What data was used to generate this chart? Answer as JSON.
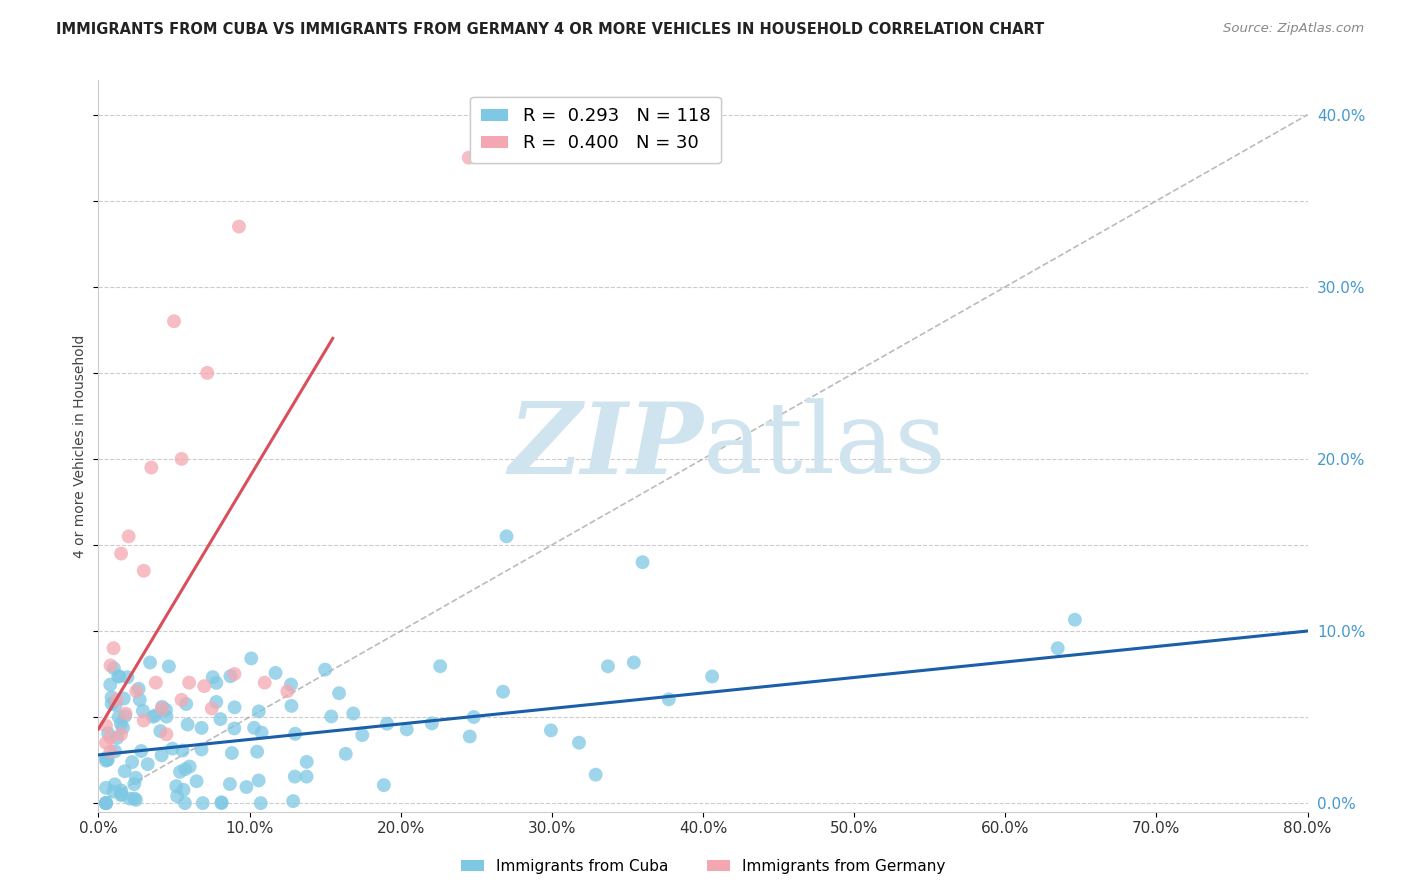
{
  "title": "IMMIGRANTS FROM CUBA VS IMMIGRANTS FROM GERMANY 4 OR MORE VEHICLES IN HOUSEHOLD CORRELATION CHART",
  "source": "Source: ZipAtlas.com",
  "xlabel_bottom": "Immigrants from Cuba",
  "ylabel": "4 or more Vehicles in Household",
  "xmin": 0.0,
  "xmax": 0.8,
  "ymin": -0.005,
  "ymax": 0.42,
  "right_yticks": [
    0.0,
    0.1,
    0.2,
    0.3,
    0.4
  ],
  "right_yticklabels": [
    "0.0%",
    "10.0%",
    "20.0%",
    "30.0%",
    "40.0%"
  ],
  "bottom_xticks": [
    0.0,
    0.1,
    0.2,
    0.3,
    0.4,
    0.5,
    0.6,
    0.7,
    0.8
  ],
  "bottom_xticklabels": [
    "0.0%",
    "10.0%",
    "20.0%",
    "30.0%",
    "40.0%",
    "50.0%",
    "60.0%",
    "70.0%",
    "80.0%"
  ],
  "cuba_R": 0.293,
  "cuba_N": 118,
  "germany_R": 0.4,
  "germany_N": 30,
  "cuba_color": "#7ec8e3",
  "germany_color": "#f4a7b0",
  "cuba_line_color": "#1a5fa8",
  "germany_line_color": "#d94f5c",
  "watermark_color": "#d0e4f0",
  "grid_color": "#cccccc",
  "background_color": "#ffffff",
  "cuba_line_x": [
    0.0,
    0.8
  ],
  "cuba_line_y": [
    0.028,
    0.1
  ],
  "germany_line_x": [
    0.0,
    0.155
  ],
  "germany_line_y": [
    0.043,
    0.27
  ],
  "diag_line_x": [
    0.0,
    0.8
  ],
  "diag_line_y": [
    0.0,
    0.4
  ]
}
